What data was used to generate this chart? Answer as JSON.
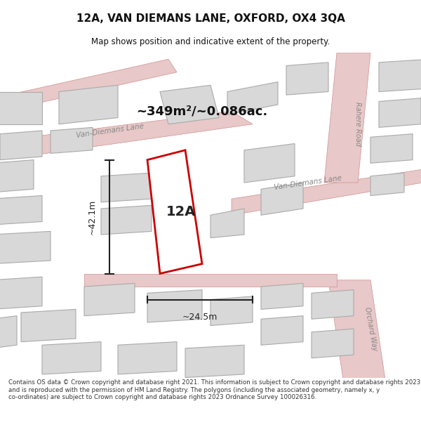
{
  "title": "12A, VAN DIEMANS LANE, OXFORD, OX4 3QA",
  "subtitle": "Map shows position and indicative extent of the property.",
  "area_label": "~349m²/~0.086ac.",
  "property_label": "12A",
  "dim_height": "~42.1m",
  "dim_width": "~24.5m",
  "footer_text": "Contains OS data © Crown copyright and database right 2021. This information is subject to Crown copyright and database rights 2023 and is reproduced with the permission of HM Land Registry. The polygons (including the associated geometry, namely x, y co-ordinates) are subject to Crown copyright and database rights 2023 Ordnance Survey 100026316.",
  "bg_color": "#f5f5f5",
  "map_bg": "#f0eeee",
  "road_color": "#e8c8c8",
  "road_outline": "#d4a0a0",
  "building_color": "#d8d8d8",
  "building_outline": "#b0b0b0",
  "property_outline": "#cc0000",
  "dim_color": "#222222",
  "street_label_color": "#888888",
  "title_color": "#111111",
  "footer_color": "#333333"
}
